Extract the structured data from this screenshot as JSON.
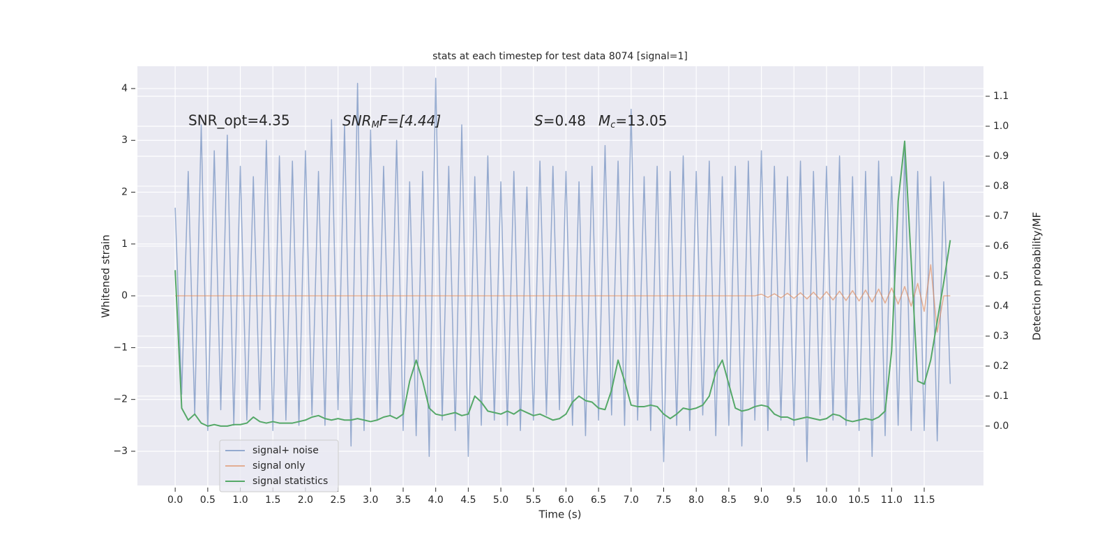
{
  "chart_data": {
    "type": "line",
    "title": "stats at each timestep for test data 8074 [signal=1]",
    "xlabel": "Time (s)",
    "ylabel": "Whitened strain",
    "y2label": "Detection probability/MF",
    "annotations": {
      "snr_opt": "SNR_opt=4.35",
      "snr_mf": [
        "SNR",
        "M",
        "F=[4.44]"
      ],
      "s": [
        "S",
        "=0.48"
      ],
      "mc": [
        "M",
        "c",
        "=13.05"
      ]
    },
    "grid": true,
    "legend": "lower left",
    "xlim": [
      -0.58,
      12.41
    ],
    "ylim": [
      -3.66,
      4.43
    ],
    "y2lim": [
      -0.198,
      1.2
    ],
    "xticks": [
      {
        "value": 0,
        "label": "0.0"
      },
      {
        "value": 0.5,
        "label": "0.5"
      },
      {
        "value": 1,
        "label": "1.0"
      },
      {
        "value": 1.5,
        "label": "1.5"
      },
      {
        "value": 2,
        "label": "2.0"
      },
      {
        "value": 2.5,
        "label": "2.5"
      },
      {
        "value": 3,
        "label": "3.0"
      },
      {
        "value": 3.5,
        "label": "3.5"
      },
      {
        "value": 4,
        "label": "4.0"
      },
      {
        "value": 4.5,
        "label": "4.5"
      },
      {
        "value": 5,
        "label": "5.0"
      },
      {
        "value": 5.5,
        "label": "5.5"
      },
      {
        "value": 6,
        "label": "6.0"
      },
      {
        "value": 6.5,
        "label": "6.5"
      },
      {
        "value": 7,
        "label": "7.0"
      },
      {
        "value": 7.5,
        "label": "7.5"
      },
      {
        "value": 8,
        "label": "8.0"
      },
      {
        "value": 8.5,
        "label": "8.5"
      },
      {
        "value": 9,
        "label": "9.0"
      },
      {
        "value": 9.5,
        "label": "9.5"
      },
      {
        "value": 10,
        "label": "10.0"
      },
      {
        "value": 10.5,
        "label": "10.5"
      },
      {
        "value": 11,
        "label": "11.0"
      },
      {
        "value": 11.5,
        "label": "11.5"
      }
    ],
    "yticks": [
      {
        "value": -3,
        "label": "−3"
      },
      {
        "value": -2,
        "label": "−2"
      },
      {
        "value": -1,
        "label": "−1"
      },
      0,
      1,
      2,
      3,
      4
    ],
    "y2ticks": [
      {
        "value": 0,
        "label": "0.0"
      },
      {
        "value": 0.1,
        "label": "0.1"
      },
      {
        "value": 0.2,
        "label": "0.2"
      },
      {
        "value": 0.3,
        "label": "0.3"
      },
      {
        "value": 0.4,
        "label": "0.4"
      },
      {
        "value": 0.5,
        "label": "0.5"
      },
      {
        "value": 0.6,
        "label": "0.6"
      },
      {
        "value": 0.7,
        "label": "0.7"
      },
      {
        "value": 0.8,
        "label": "0.8"
      },
      {
        "value": 0.9,
        "label": "0.9"
      },
      {
        "value": 1,
        "label": "1.0"
      },
      {
        "value": 1.1,
        "label": "1.1"
      }
    ],
    "x": [
      0,
      0.1,
      0.2,
      0.3,
      0.4,
      0.5,
      0.6,
      0.7,
      0.8,
      0.9,
      1,
      1.1,
      1.2,
      1.3,
      1.4,
      1.5,
      1.6,
      1.7,
      1.8,
      1.9,
      2,
      2.1,
      2.2,
      2.3,
      2.4,
      2.5,
      2.6,
      2.7,
      2.8,
      2.9,
      3,
      3.1,
      3.2,
      3.3,
      3.4,
      3.5,
      3.6,
      3.7,
      3.8,
      3.9,
      4,
      4.1,
      4.2,
      4.3,
      4.4,
      4.5,
      4.6,
      4.7,
      4.8,
      4.9,
      5,
      5.1,
      5.2,
      5.3,
      5.4,
      5.5,
      5.6,
      5.7,
      5.8,
      5.9,
      6,
      6.1,
      6.2,
      6.3,
      6.4,
      6.5,
      6.6,
      6.7,
      6.8,
      6.9,
      7,
      7.1,
      7.2,
      7.3,
      7.4,
      7.5,
      7.6,
      7.7,
      7.8,
      7.9,
      8,
      8.1,
      8.2,
      8.3,
      8.4,
      8.5,
      8.6,
      8.7,
      8.8,
      8.9,
      9,
      9.1,
      9.2,
      9.3,
      9.4,
      9.5,
      9.6,
      9.7,
      9.8,
      9.9,
      10,
      10.1,
      10.2,
      10.3,
      10.4,
      10.5,
      10.6,
      10.7,
      10.8,
      10.9,
      11,
      11.1,
      11.2,
      11.3,
      11.4,
      11.5,
      11.6,
      11.7,
      11.8,
      11.9
    ],
    "series": [
      {
        "name": "signal+ noise",
        "color": "#4c72b0",
        "opacity": 0.55,
        "values": [
          1.7,
          -1.9,
          2.4,
          -2.3,
          3.3,
          -2.6,
          2.8,
          -2.2,
          3.1,
          -2.5,
          2.5,
          -2.4,
          2.3,
          -2.2,
          3.0,
          -2.6,
          2.7,
          -2.4,
          2.6,
          -2.5,
          2.8,
          -2.3,
          2.4,
          -2.5,
          3.4,
          -2.2,
          3.3,
          -2.9,
          4.1,
          -2.6,
          3.2,
          -2.4,
          2.5,
          -2.3,
          3.0,
          -2.6,
          2.2,
          -2.7,
          2.4,
          -3.1,
          4.2,
          -2.4,
          2.5,
          -2.6,
          3.3,
          -3.1,
          2.3,
          -2.5,
          2.7,
          -2.4,
          2.2,
          -2.5,
          2.4,
          -2.6,
          2.1,
          -2.4,
          2.6,
          -2.3,
          2.5,
          -2.2,
          2.4,
          -2.5,
          2.2,
          -2.7,
          2.5,
          -2.4,
          2.9,
          -2.3,
          2.6,
          -2.5,
          3.6,
          -2.4,
          2.3,
          -2.6,
          2.5,
          -3.2,
          2.4,
          -2.5,
          2.7,
          -2.6,
          2.4,
          -2.3,
          2.6,
          -2.7,
          2.3,
          -2.5,
          2.5,
          -2.9,
          2.6,
          -2.4,
          2.8,
          -2.6,
          2.5,
          -2.4,
          2.3,
          -2.5,
          2.6,
          -3.2,
          2.4,
          -2.3,
          2.5,
          -2.4,
          2.7,
          -2.5,
          2.3,
          -2.6,
          2.4,
          -3.1,
          2.6,
          -2.7,
          2.3,
          -2.5,
          2.8,
          -2.6,
          2.4,
          -2.6,
          2.3,
          -2.8,
          2.2,
          -1.7
        ]
      },
      {
        "name": "signal only",
        "color": "#dd8452",
        "opacity": 0.6,
        "values": [
          0,
          0,
          0,
          0,
          0,
          0,
          0,
          0,
          0,
          0,
          0,
          0,
          0,
          0,
          0,
          0,
          0,
          0,
          0,
          0,
          0,
          0,
          0,
          0,
          0,
          0,
          0,
          0,
          0,
          0,
          0,
          0,
          0,
          0,
          0,
          0,
          0,
          0,
          0,
          0,
          0,
          0,
          0,
          0,
          0,
          0,
          0,
          0,
          0,
          0,
          0,
          0,
          0,
          0,
          0,
          0,
          0,
          0,
          0,
          0,
          0,
          0,
          0,
          0,
          0,
          0,
          0,
          0,
          0,
          0,
          0,
          0,
          0,
          0,
          0,
          0,
          0,
          0,
          0,
          0,
          0,
          0,
          0,
          0,
          0,
          0,
          0,
          0,
          0,
          0,
          0.03,
          -0.03,
          0.04,
          -0.04,
          0.05,
          -0.05,
          0.06,
          -0.06,
          0.07,
          -0.07,
          0.08,
          -0.08,
          0.09,
          -0.09,
          0.1,
          -0.1,
          0.11,
          -0.12,
          0.13,
          -0.14,
          0.15,
          -0.16,
          0.18,
          -0.2,
          0.24,
          -0.3,
          0.6,
          -0.7,
          0,
          0
        ]
      },
      {
        "name": "signal statistics",
        "color": "#55a868",
        "opacity": 1,
        "axis": "y2",
        "values": [
          0.52,
          0.06,
          0.02,
          0.04,
          0.01,
          0,
          0.005,
          0,
          0,
          0.005,
          0.005,
          0.01,
          0.03,
          0.015,
          0.01,
          0.015,
          0.01,
          0.01,
          0.01,
          0.015,
          0.02,
          0.03,
          0.035,
          0.025,
          0.02,
          0.025,
          0.02,
          0.02,
          0.025,
          0.02,
          0.015,
          0.02,
          0.03,
          0.035,
          0.025,
          0.04,
          0.15,
          0.22,
          0.15,
          0.06,
          0.04,
          0.035,
          0.04,
          0.045,
          0.035,
          0.04,
          0.1,
          0.08,
          0.05,
          0.045,
          0.04,
          0.05,
          0.04,
          0.055,
          0.045,
          0.035,
          0.04,
          0.03,
          0.02,
          0.025,
          0.04,
          0.08,
          0.1,
          0.085,
          0.08,
          0.06,
          0.055,
          0.12,
          0.22,
          0.15,
          0.07,
          0.065,
          0.065,
          0.07,
          0.065,
          0.04,
          0.025,
          0.04,
          0.06,
          0.055,
          0.06,
          0.07,
          0.1,
          0.18,
          0.22,
          0.14,
          0.06,
          0.05,
          0.055,
          0.065,
          0.07,
          0.065,
          0.04,
          0.03,
          0.03,
          0.02,
          0.025,
          0.03,
          0.025,
          0.02,
          0.025,
          0.04,
          0.035,
          0.02,
          0.015,
          0.02,
          0.025,
          0.02,
          0.03,
          0.05,
          0.25,
          0.75,
          0.95,
          0.55,
          0.15,
          0.14,
          0.22,
          0.35,
          0.48,
          0.62
        ]
      }
    ]
  }
}
